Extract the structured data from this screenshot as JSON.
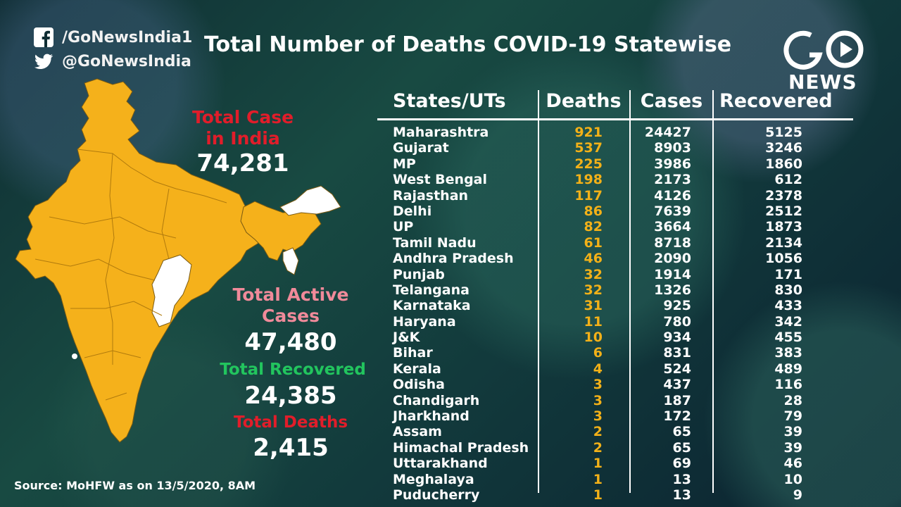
{
  "social": {
    "facebook_handle": "/GoNewsIndia1",
    "twitter_handle": "@GoNewsIndia",
    "facebook_icon": "facebook-icon",
    "twitter_icon": "twitter-icon"
  },
  "title": "Total Number of Deaths COVID-19 Statewise",
  "logo": {
    "mark": "GO",
    "word": "NEWS"
  },
  "colors": {
    "map_fill": "#f5b11b",
    "label_red": "#e11d2a",
    "label_pink": "#f08a9a",
    "label_green": "#22c55e",
    "deaths_color": "#f3b118"
  },
  "stats": {
    "total_case_label_1": "Total Case",
    "total_case_label_2": "in India",
    "total_case_value": "74,281",
    "active_label_1": "Total Active",
    "active_label_2": "Cases",
    "active_value": "47,480",
    "recovered_label": "Total Recovered",
    "recovered_value": "24,385",
    "deaths_label": "Total Deaths",
    "deaths_value": "2,415"
  },
  "table": {
    "headers": {
      "state": "States/UTs",
      "deaths": "Deaths",
      "cases": "Cases",
      "recovered": "Recovered"
    },
    "rows": [
      {
        "state": "Maharashtra",
        "deaths": "921",
        "cases": "24427",
        "recovered": "5125"
      },
      {
        "state": "Gujarat",
        "deaths": "537",
        "cases": "8903",
        "recovered": "3246"
      },
      {
        "state": "MP",
        "deaths": "225",
        "cases": "3986",
        "recovered": "1860"
      },
      {
        "state": "West Bengal",
        "deaths": "198",
        "cases": "2173",
        "recovered": "612"
      },
      {
        "state": "Rajasthan",
        "deaths": "117",
        "cases": "4126",
        "recovered": "2378"
      },
      {
        "state": "Delhi",
        "deaths": "86",
        "cases": "7639",
        "recovered": "2512"
      },
      {
        "state": "UP",
        "deaths": "82",
        "cases": "3664",
        "recovered": "1873"
      },
      {
        "state": "Tamil Nadu",
        "deaths": "61",
        "cases": "8718",
        "recovered": "2134"
      },
      {
        "state": "Andhra Pradesh",
        "deaths": "46",
        "cases": "2090",
        "recovered": "1056"
      },
      {
        "state": "Punjab",
        "deaths": "32",
        "cases": "1914",
        "recovered": "171"
      },
      {
        "state": "Telangana",
        "deaths": "32",
        "cases": "1326",
        "recovered": "830"
      },
      {
        "state": "Karnataka",
        "deaths": "31",
        "cases": "925",
        "recovered": "433"
      },
      {
        "state": "Haryana",
        "deaths": "11",
        "cases": "780",
        "recovered": "342"
      },
      {
        "state": "J&K",
        "deaths": "10",
        "cases": "934",
        "recovered": "455"
      },
      {
        "state": "Bihar",
        "deaths": "6",
        "cases": "831",
        "recovered": "383"
      },
      {
        "state": "Kerala",
        "deaths": "4",
        "cases": "524",
        "recovered": "489"
      },
      {
        "state": "Odisha",
        "deaths": "3",
        "cases": "437",
        "recovered": "116"
      },
      {
        "state": "Chandigarh",
        "deaths": "3",
        "cases": "187",
        "recovered": "28"
      },
      {
        "state": "Jharkhand",
        "deaths": "3",
        "cases": "172",
        "recovered": "79"
      },
      {
        "state": "Assam",
        "deaths": "2",
        "cases": "65",
        "recovered": "39"
      },
      {
        "state": "Himachal Pradesh",
        "deaths": "2",
        "cases": "65",
        "recovered": "39"
      },
      {
        "state": "Uttarakhand",
        "deaths": "1",
        "cases": "69",
        "recovered": "46"
      },
      {
        "state": "Meghalaya",
        "deaths": "1",
        "cases": "13",
        "recovered": "10"
      },
      {
        "state": "Puducherry",
        "deaths": "1",
        "cases": "13",
        "recovered": "9"
      }
    ]
  },
  "source": "Source: MoHFW as on 13/5/2020, 8AM"
}
